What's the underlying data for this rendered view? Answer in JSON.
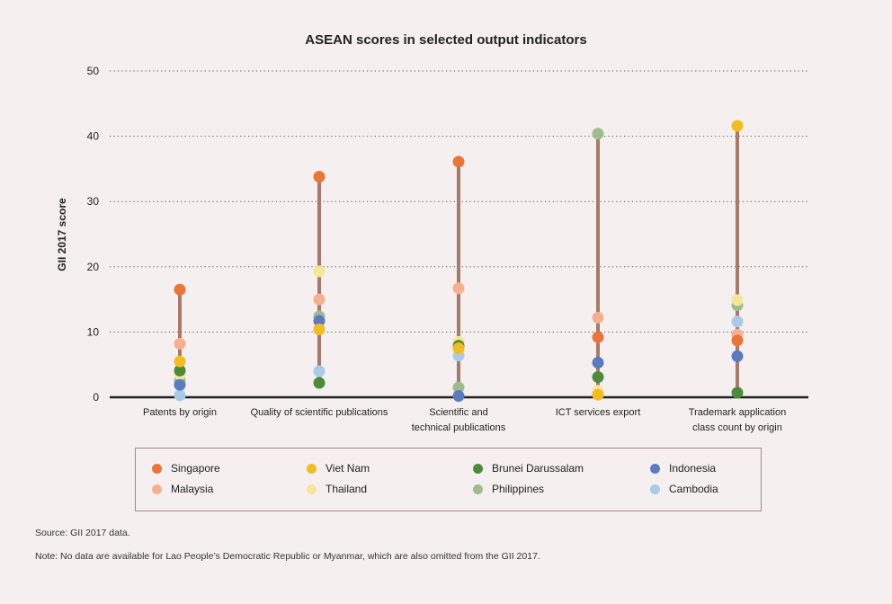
{
  "chart_data": {
    "type": "scatter",
    "title": "ASEAN scores in selected output indicators",
    "ylabel": "GII 2017 score",
    "xlabel": "",
    "ylim": [
      0,
      50
    ],
    "yticks": [
      0,
      10,
      20,
      30,
      40,
      50
    ],
    "grid": true,
    "legend_position": "bottom",
    "categories": [
      [
        "Patents by origin"
      ],
      [
        "Quality of scientific publications"
      ],
      [
        "Scientific and",
        "technical publications"
      ],
      [
        "ICT services export"
      ],
      [
        "Trademark application",
        "class count by origin"
      ]
    ],
    "series": [
      {
        "name": "Singapore",
        "color": "#e8763a",
        "values": [
          16.5,
          33.8,
          36.1,
          9.2,
          8.7
        ]
      },
      {
        "name": "Viet Nam",
        "color": "#f2bd22",
        "values": [
          5.5,
          10.4,
          7.5,
          0.4,
          41.6
        ]
      },
      {
        "name": "Brunei Darussalam",
        "color": "#4e8a3c",
        "values": [
          4.1,
          2.2,
          7.9,
          3.1,
          0.7
        ]
      },
      {
        "name": "Indonesia",
        "color": "#5a7bbf",
        "values": [
          1.9,
          11.7,
          0.2,
          5.3,
          6.3
        ]
      },
      {
        "name": "Malaysia",
        "color": "#f5b092",
        "values": [
          8.2,
          15.0,
          16.7,
          12.2,
          9.6
        ]
      },
      {
        "name": "Thailand",
        "color": "#f7e59c",
        "values": [
          3.5,
          19.3,
          8.5,
          1.0,
          14.9
        ]
      },
      {
        "name": "Philippines",
        "color": "#9fbc8f",
        "values": [
          2.5,
          12.4,
          1.5,
          40.4,
          14.1
        ]
      },
      {
        "name": "Cambodia",
        "color": "#a9cbe8",
        "values": [
          0.3,
          4.0,
          6.4,
          0.8,
          11.6
        ]
      }
    ]
  },
  "notes": {
    "source": "Source: GII 2017 data.",
    "note": "Note: No data are available for Lao People’s Democratic Republic or Myanmar, which are also omitted from the GII 2017."
  }
}
